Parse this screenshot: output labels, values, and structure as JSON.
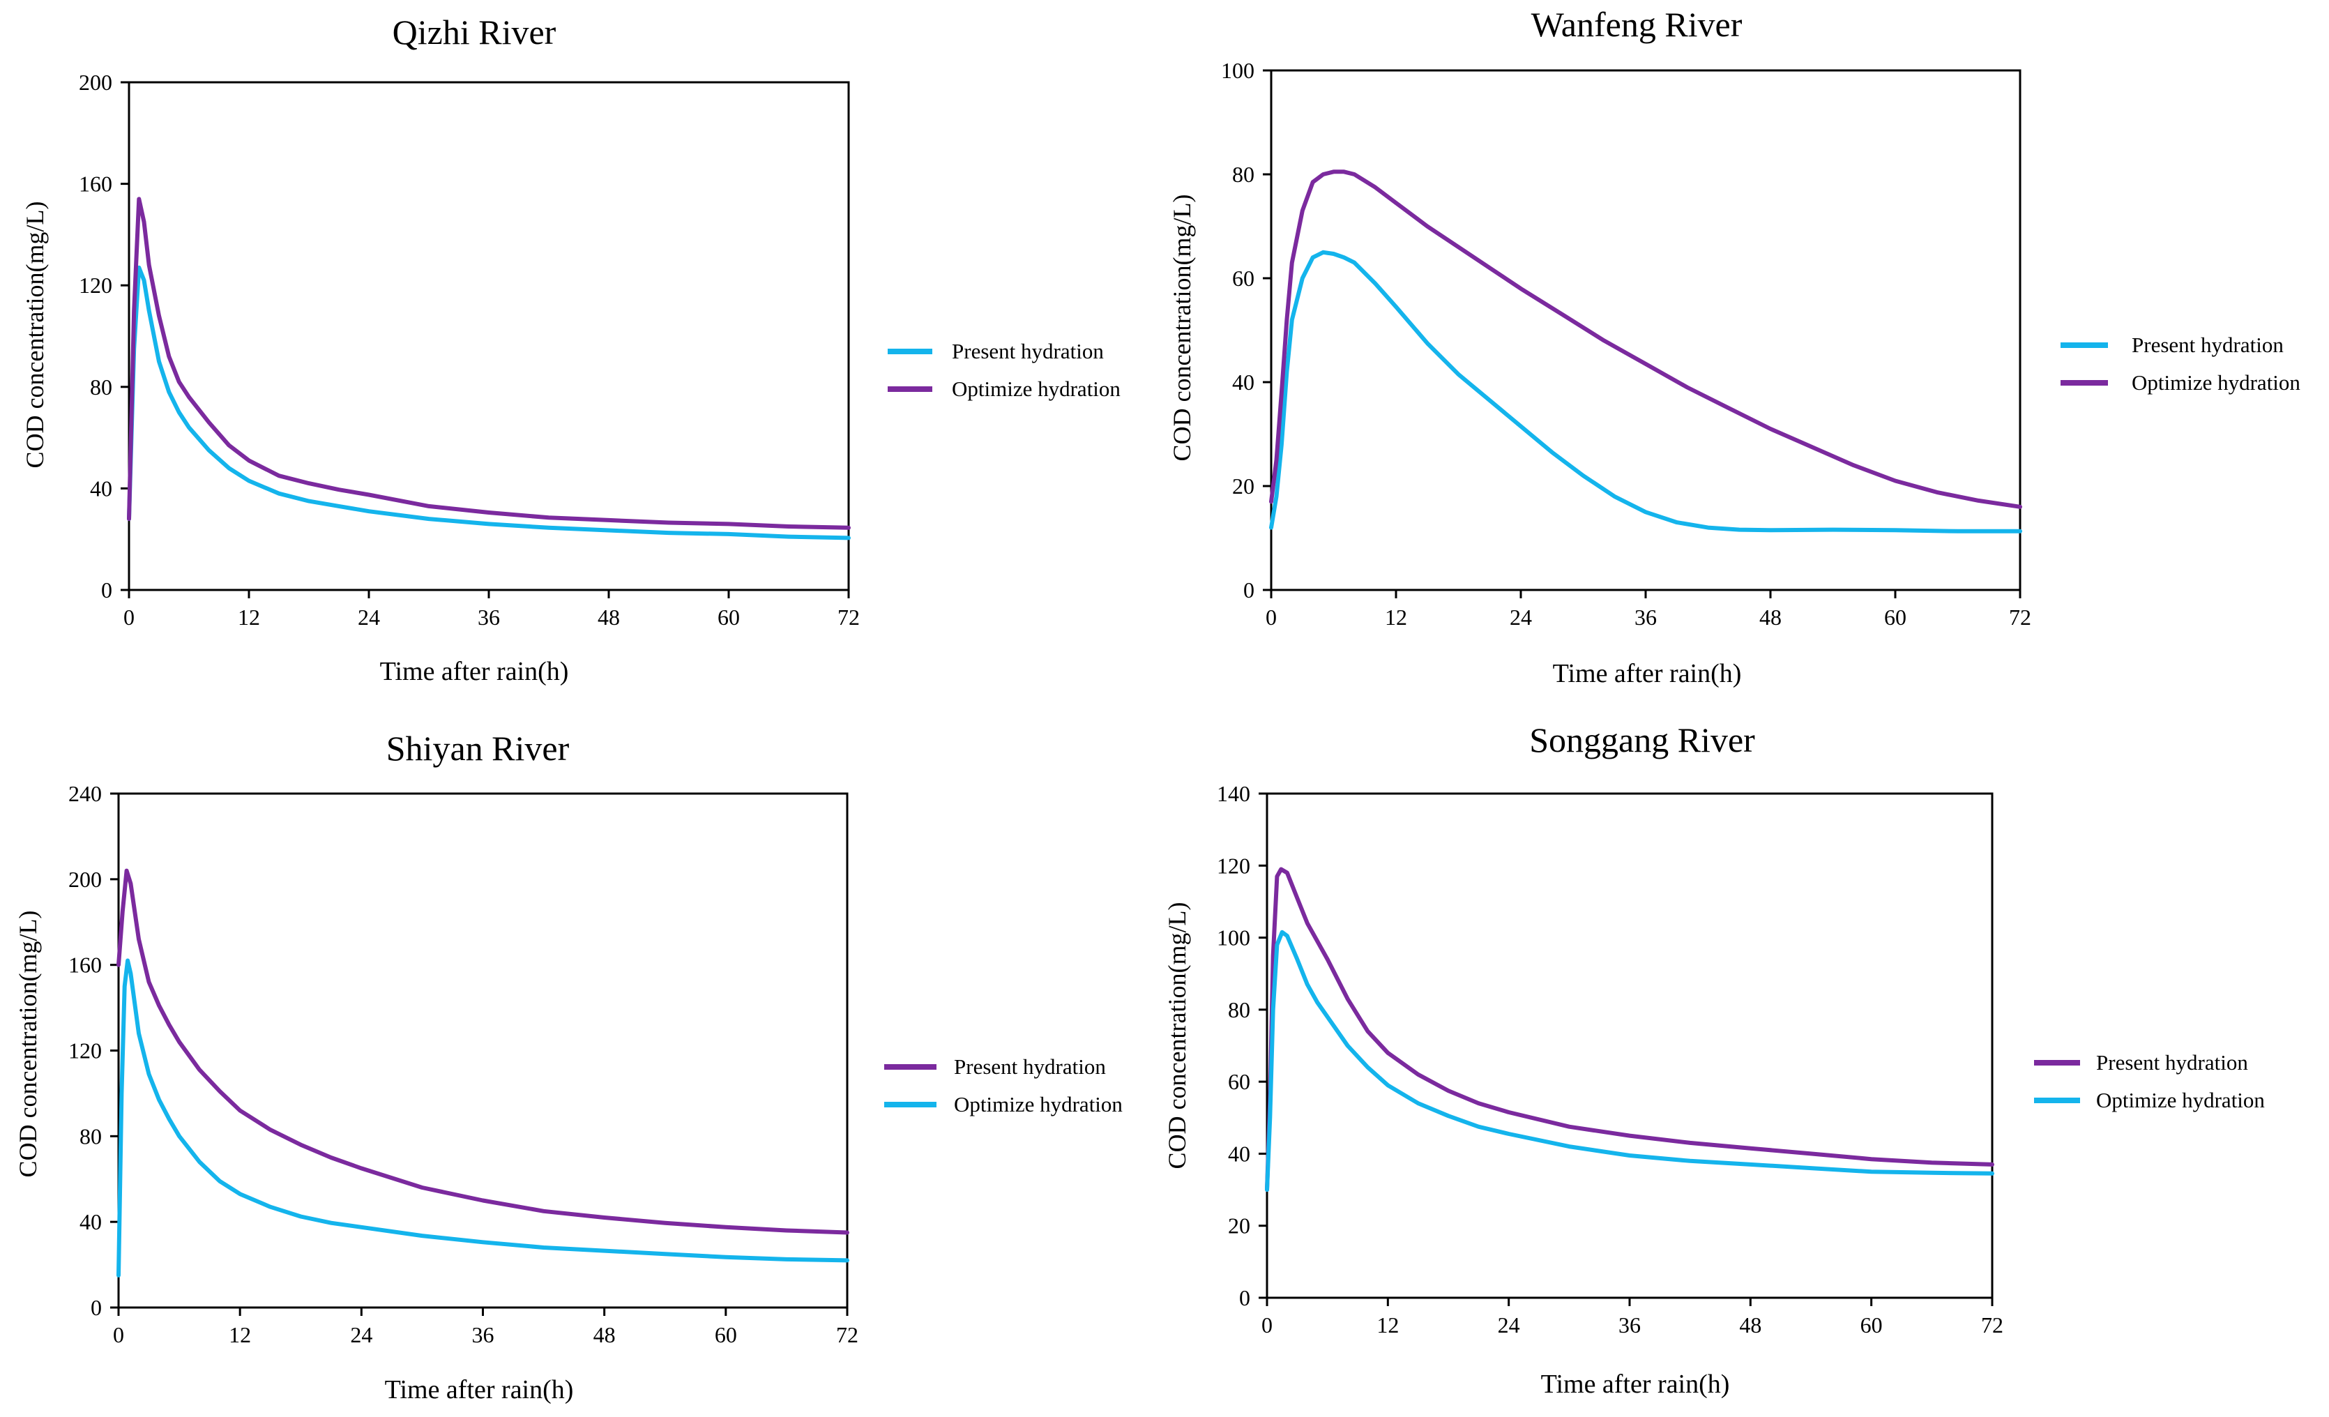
{
  "colors": {
    "purple": "#7B2A9E",
    "cyan": "#14B4EC"
  },
  "chart_data": [
    {
      "type": "line",
      "title": "Qizhi River",
      "xlabel": "Time after rain(h)",
      "ylabel": "COD concentration(mg/L)",
      "xlim": [
        0,
        72
      ],
      "ylim": [
        0,
        200
      ],
      "xticks": [
        0,
        12,
        24,
        36,
        48,
        60,
        72
      ],
      "yticks": [
        0,
        40,
        80,
        120,
        160,
        200
      ],
      "legend_position": "right",
      "series": [
        {
          "name": "Present hydration",
          "color": "cyan",
          "points": [
            [
              0,
              28
            ],
            [
              0.5,
              95
            ],
            [
              1,
              127
            ],
            [
              1.5,
              122
            ],
            [
              2,
              110
            ],
            [
              3,
              90
            ],
            [
              4,
              78
            ],
            [
              5,
              70
            ],
            [
              6,
              64
            ],
            [
              8,
              55
            ],
            [
              10,
              48
            ],
            [
              12,
              43
            ],
            [
              15,
              38
            ],
            [
              18,
              35
            ],
            [
              21,
              33
            ],
            [
              24,
              31
            ],
            [
              30,
              28
            ],
            [
              36,
              26
            ],
            [
              42,
              24.5
            ],
            [
              48,
              23.5
            ],
            [
              54,
              22.5
            ],
            [
              60,
              22
            ],
            [
              66,
              21
            ],
            [
              72,
              20.5
            ]
          ]
        },
        {
          "name": "Optimize hydration",
          "color": "purple",
          "points": [
            [
              0,
              28
            ],
            [
              0.5,
              110
            ],
            [
              1,
              154
            ],
            [
              1.5,
              145
            ],
            [
              2,
              128
            ],
            [
              3,
              108
            ],
            [
              4,
              92
            ],
            [
              5,
              82
            ],
            [
              6,
              76
            ],
            [
              8,
              66
            ],
            [
              10,
              57
            ],
            [
              12,
              51
            ],
            [
              15,
              45
            ],
            [
              18,
              42
            ],
            [
              21,
              39.5
            ],
            [
              24,
              37.5
            ],
            [
              30,
              33
            ],
            [
              36,
              30.5
            ],
            [
              42,
              28.5
            ],
            [
              48,
              27.5
            ],
            [
              54,
              26.5
            ],
            [
              60,
              26
            ],
            [
              66,
              25
            ],
            [
              72,
              24.5
            ]
          ]
        }
      ]
    },
    {
      "type": "line",
      "title": "Wanfeng River",
      "xlabel": "Time after rain(h)",
      "ylabel": "COD concentration(mg/L)",
      "xlim": [
        0,
        72
      ],
      "ylim": [
        0,
        100
      ],
      "xticks": [
        0,
        12,
        24,
        36,
        48,
        60,
        72
      ],
      "yticks": [
        0,
        20,
        40,
        60,
        80,
        100
      ],
      "legend_position": "right",
      "series": [
        {
          "name": "Present hydration",
          "color": "cyan",
          "points": [
            [
              0,
              12
            ],
            [
              0.5,
              18
            ],
            [
              1,
              28
            ],
            [
              1.5,
              42
            ],
            [
              2,
              52
            ],
            [
              3,
              60
            ],
            [
              4,
              64
            ],
            [
              5,
              65
            ],
            [
              6,
              64.7
            ],
            [
              7,
              64
            ],
            [
              8,
              63
            ],
            [
              10,
              59
            ],
            [
              12,
              54.5
            ],
            [
              15,
              47.5
            ],
            [
              18,
              41.5
            ],
            [
              21,
              36.5
            ],
            [
              24,
              31.5
            ],
            [
              27,
              26.5
            ],
            [
              30,
              22
            ],
            [
              33,
              18
            ],
            [
              36,
              15
            ],
            [
              39,
              13
            ],
            [
              42,
              12
            ],
            [
              45,
              11.6
            ],
            [
              48,
              11.5
            ],
            [
              54,
              11.6
            ],
            [
              60,
              11.5
            ],
            [
              66,
              11.3
            ],
            [
              72,
              11.3
            ]
          ]
        },
        {
          "name": "Optimize hydration",
          "color": "purple",
          "points": [
            [
              0,
              17
            ],
            [
              0.5,
              25
            ],
            [
              1,
              38
            ],
            [
              1.5,
              52
            ],
            [
              2,
              63
            ],
            [
              3,
              73
            ],
            [
              4,
              78.5
            ],
            [
              5,
              80
            ],
            [
              6,
              80.5
            ],
            [
              7,
              80.5
            ],
            [
              8,
              80
            ],
            [
              10,
              77.5
            ],
            [
              12,
              74.5
            ],
            [
              15,
              70
            ],
            [
              18,
              66
            ],
            [
              21,
              62
            ],
            [
              24,
              58
            ],
            [
              28,
              53
            ],
            [
              32,
              48
            ],
            [
              36,
              43.5
            ],
            [
              40,
              39
            ],
            [
              44,
              35
            ],
            [
              48,
              31
            ],
            [
              52,
              27.5
            ],
            [
              56,
              24
            ],
            [
              60,
              21
            ],
            [
              64,
              18.8
            ],
            [
              68,
              17.2
            ],
            [
              72,
              16
            ]
          ]
        }
      ]
    },
    {
      "type": "line",
      "title": "Shiyan River",
      "xlabel": "Time after rain(h)",
      "ylabel": "COD concentration(mg/L)",
      "xlim": [
        0,
        72
      ],
      "ylim": [
        0,
        240
      ],
      "xticks": [
        0,
        12,
        24,
        36,
        48,
        60,
        72
      ],
      "yticks": [
        0,
        40,
        80,
        120,
        160,
        200,
        240
      ],
      "legend_position": "right",
      "series": [
        {
          "name": "Present hydration",
          "color": "purple",
          "points": [
            [
              0,
              160
            ],
            [
              0.4,
              185
            ],
            [
              0.8,
              204
            ],
            [
              1.2,
              198
            ],
            [
              1.6,
              185
            ],
            [
              2,
              172
            ],
            [
              3,
              152
            ],
            [
              4,
              141
            ],
            [
              5,
              132
            ],
            [
              6,
              124
            ],
            [
              8,
              111
            ],
            [
              10,
              101
            ],
            [
              12,
              92
            ],
            [
              15,
              83
            ],
            [
              18,
              76
            ],
            [
              21,
              70
            ],
            [
              24,
              65
            ],
            [
              30,
              56
            ],
            [
              36,
              50
            ],
            [
              42,
              45
            ],
            [
              48,
              42
            ],
            [
              54,
              39.5
            ],
            [
              60,
              37.5
            ],
            [
              66,
              36
            ],
            [
              72,
              35
            ]
          ]
        },
        {
          "name": "Optimize hydration",
          "color": "cyan",
          "points": [
            [
              0,
              15
            ],
            [
              0.3,
              100
            ],
            [
              0.6,
              150
            ],
            [
              0.9,
              162
            ],
            [
              1.2,
              156
            ],
            [
              1.6,
              142
            ],
            [
              2,
              128
            ],
            [
              3,
              109
            ],
            [
              4,
              97
            ],
            [
              5,
              88
            ],
            [
              6,
              80
            ],
            [
              8,
              68
            ],
            [
              10,
              59
            ],
            [
              12,
              53
            ],
            [
              15,
              47
            ],
            [
              18,
              42.5
            ],
            [
              21,
              39.5
            ],
            [
              24,
              37.5
            ],
            [
              30,
              33.5
            ],
            [
              36,
              30.5
            ],
            [
              42,
              28
            ],
            [
              48,
              26.5
            ],
            [
              54,
              25
            ],
            [
              60,
              23.5
            ],
            [
              66,
              22.5
            ],
            [
              72,
              22
            ]
          ]
        }
      ]
    },
    {
      "type": "line",
      "title": "Songgang River",
      "xlabel": "Time after rain(h)",
      "ylabel": "COD concentration(mg/L)",
      "xlim": [
        0,
        72
      ],
      "ylim": [
        0,
        140
      ],
      "xticks": [
        0,
        12,
        24,
        36,
        48,
        60,
        72
      ],
      "yticks": [
        0,
        20,
        40,
        60,
        80,
        100,
        120,
        140
      ],
      "legend_position": "right",
      "series": [
        {
          "name": "Present hydration",
          "color": "purple",
          "points": [
            [
              0,
              30
            ],
            [
              0.3,
              55
            ],
            [
              0.6,
              95
            ],
            [
              1,
              117
            ],
            [
              1.4,
              119
            ],
            [
              2,
              118
            ],
            [
              3,
              111
            ],
            [
              4,
              104
            ],
            [
              5,
              99
            ],
            [
              6,
              94
            ],
            [
              8,
              83
            ],
            [
              10,
              74
            ],
            [
              12,
              68
            ],
            [
              15,
              62
            ],
            [
              18,
              57.5
            ],
            [
              21,
              54
            ],
            [
              24,
              51.5
            ],
            [
              30,
              47.5
            ],
            [
              36,
              45
            ],
            [
              42,
              43
            ],
            [
              48,
              41.5
            ],
            [
              54,
              40
            ],
            [
              60,
              38.5
            ],
            [
              66,
              37.5
            ],
            [
              72,
              37
            ]
          ]
        },
        {
          "name": "Optimize hydration",
          "color": "cyan",
          "points": [
            [
              0,
              30
            ],
            [
              0.3,
              50
            ],
            [
              0.6,
              80
            ],
            [
              1,
              98
            ],
            [
              1.5,
              101.5
            ],
            [
              2,
              100.5
            ],
            [
              3,
              94
            ],
            [
              4,
              87
            ],
            [
              5,
              82
            ],
            [
              6,
              78
            ],
            [
              8,
              70
            ],
            [
              10,
              64
            ],
            [
              12,
              59
            ],
            [
              15,
              54
            ],
            [
              18,
              50.5
            ],
            [
              21,
              47.5
            ],
            [
              24,
              45.5
            ],
            [
              30,
              42
            ],
            [
              36,
              39.5
            ],
            [
              42,
              38
            ],
            [
              48,
              37
            ],
            [
              54,
              36
            ],
            [
              60,
              35
            ],
            [
              66,
              34.7
            ],
            [
              72,
              34.5
            ]
          ]
        }
      ]
    }
  ]
}
